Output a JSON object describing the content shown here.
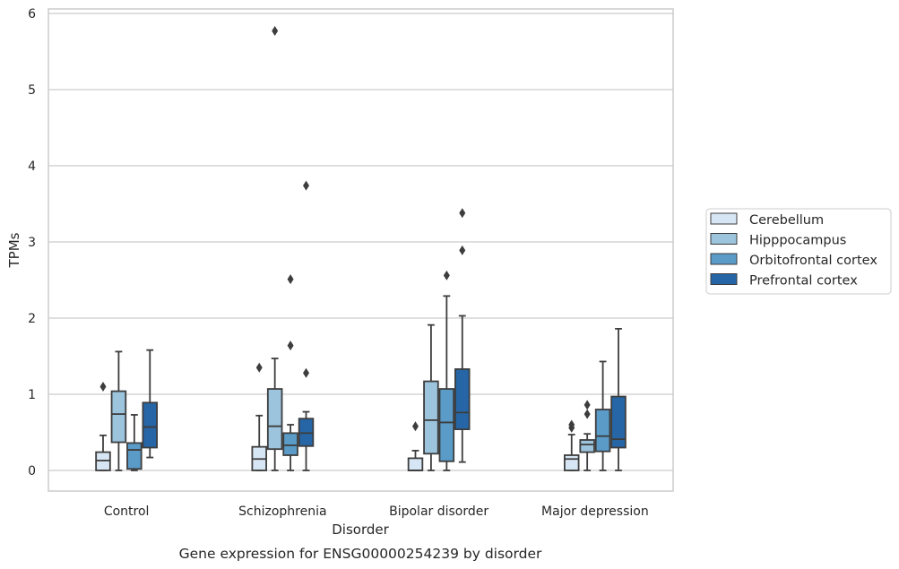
{
  "chart_data": {
    "type": "box",
    "xlabel": "Disorder",
    "ylabel": "TPMs",
    "caption": "Gene expression for ENSG00000254239 by disorder",
    "ylim": [
      -0.27,
      6.07
    ],
    "yticks": [
      "0",
      "1",
      "2",
      "3",
      "4",
      "5",
      "6"
    ],
    "grid": true,
    "legend_position": "right",
    "categories": [
      "Control",
      "Schizophrenia",
      "Bipolar disorder",
      "Major depression"
    ],
    "series": [
      {
        "name": "Cerebellum",
        "color": "#d7e6f4",
        "boxes": [
          {
            "min": 0.0,
            "q1": 0.0,
            "median": 0.13,
            "q3": 0.24,
            "max": 0.46,
            "outliers": [
              1.1
            ]
          },
          {
            "min": 0.0,
            "q1": 0.0,
            "median": 0.15,
            "q3": 0.31,
            "max": 0.72,
            "outliers": [
              1.35
            ]
          },
          {
            "min": 0.0,
            "q1": 0.0,
            "median": 0.0,
            "q3": 0.16,
            "max": 0.26,
            "outliers": [
              0.58
            ]
          },
          {
            "min": 0.0,
            "q1": 0.0,
            "median": 0.15,
            "q3": 0.2,
            "max": 0.47,
            "outliers": [
              0.56,
              0.6
            ]
          }
        ]
      },
      {
        "name": "Hipppocampus",
        "color": "#9cc4dd",
        "boxes": [
          {
            "min": 0.0,
            "q1": 0.37,
            "median": 0.74,
            "q3": 1.04,
            "max": 1.56,
            "outliers": []
          },
          {
            "min": 0.0,
            "q1": 0.28,
            "median": 0.58,
            "q3": 1.07,
            "max": 1.47,
            "outliers": [
              5.77
            ]
          },
          {
            "min": 0.0,
            "q1": 0.22,
            "median": 0.66,
            "q3": 1.17,
            "max": 1.91,
            "outliers": []
          },
          {
            "min": 0.0,
            "q1": 0.24,
            "median": 0.34,
            "q3": 0.4,
            "max": 0.48,
            "outliers": [
              0.74,
              0.86
            ]
          }
        ]
      },
      {
        "name": "Orbitofrontal cortex",
        "color": "#5a9bc8",
        "boxes": [
          {
            "min": 0.0,
            "q1": 0.02,
            "median": 0.27,
            "q3": 0.36,
            "max": 0.73,
            "outliers": []
          },
          {
            "min": 0.0,
            "q1": 0.2,
            "median": 0.33,
            "q3": 0.49,
            "max": 0.6,
            "outliers": [
              1.64,
              2.51
            ]
          },
          {
            "min": 0.0,
            "q1": 0.12,
            "median": 0.63,
            "q3": 1.07,
            "max": 2.29,
            "outliers": [
              2.56
            ]
          },
          {
            "min": 0.0,
            "q1": 0.25,
            "median": 0.45,
            "q3": 0.8,
            "max": 1.43,
            "outliers": []
          }
        ]
      },
      {
        "name": "Prefrontal cortex",
        "color": "#2666a6",
        "boxes": [
          {
            "min": 0.17,
            "q1": 0.3,
            "median": 0.57,
            "q3": 0.89,
            "max": 1.58,
            "outliers": []
          },
          {
            "min": 0.0,
            "q1": 0.32,
            "median": 0.49,
            "q3": 0.68,
            "max": 0.77,
            "outliers": [
              1.28,
              3.74
            ]
          },
          {
            "min": 0.11,
            "q1": 0.54,
            "median": 0.76,
            "q3": 1.33,
            "max": 2.03,
            "outliers": [
              2.89,
              3.38
            ]
          },
          {
            "min": 0.0,
            "q1": 0.3,
            "median": 0.41,
            "q3": 0.97,
            "max": 1.86,
            "outliers": []
          }
        ]
      }
    ]
  }
}
